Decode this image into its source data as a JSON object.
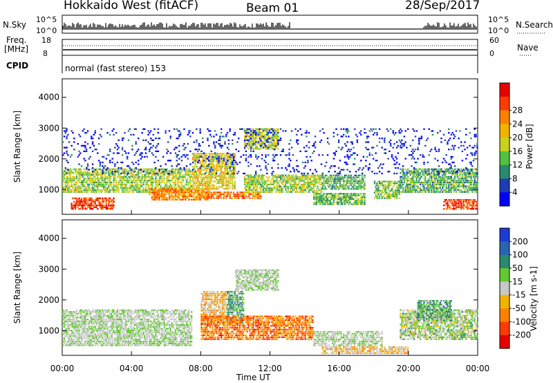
{
  "header": {
    "station": "Hokkaido West (fitACF)",
    "beam": "Beam 01",
    "date": "28/Sep/2017"
  },
  "status_panel": {
    "nsky_label": "N.Sky",
    "nsky_top": "10^5",
    "nsky_bottom": "10^0",
    "nsearch_label": "N.Search",
    "nsearch_top": "10^5",
    "nsearch_bottom": "10^0",
    "freq_label_1": "Freq.",
    "freq_label_2": "[MHz]",
    "freq_top": "18",
    "freq_bottom": "8",
    "nave_label": "Nave",
    "nave_top": "60",
    "nave_bottom": "0",
    "cpid_label": "CPID",
    "cpid_text": "normal (fast stereo) 153"
  },
  "chart_data": [
    {
      "type": "heatmap",
      "title": "",
      "xlabel": "Time UT",
      "ylabel": "Slant Range [km]",
      "colorbar_label": "Power [dB]",
      "x_ticks": [
        "00:00",
        "04:00",
        "08:00",
        "12:00",
        "16:00",
        "20:00",
        "00:00"
      ],
      "y_ticks": [
        1000,
        2000,
        3000,
        4000
      ],
      "ylim": [
        200,
        4600
      ],
      "colorbar_ticks": [
        4,
        8,
        12,
        16,
        20,
        24,
        28
      ],
      "colorbar_colors": [
        "#0000ff",
        "#1e3cb4",
        "#2a8a6e",
        "#55c040",
        "#c8d21e",
        "#f0b400",
        "#ff8200",
        "#ff3c00",
        "#e60000"
      ],
      "regions": [
        {
          "t0": 0.5,
          "t1": 3.0,
          "r0": 350,
          "r1": 750,
          "level": 0.85
        },
        {
          "t0": 0.0,
          "t1": 7.5,
          "r0": 900,
          "r1": 1700,
          "level": 0.45
        },
        {
          "t0": 5.0,
          "t1": 8.5,
          "r0": 650,
          "r1": 1050,
          "level": 0.7
        },
        {
          "t0": 7.5,
          "t1": 10.0,
          "r0": 1000,
          "r1": 2200,
          "level": 0.55
        },
        {
          "t0": 8.0,
          "t1": 11.5,
          "r0": 700,
          "r1": 950,
          "level": 0.75
        },
        {
          "t0": 10.5,
          "t1": 12.5,
          "r0": 2300,
          "r1": 3000,
          "level": 0.5
        },
        {
          "t0": 10.5,
          "t1": 15.0,
          "r0": 900,
          "r1": 1500,
          "level": 0.45
        },
        {
          "t0": 14.5,
          "t1": 17.5,
          "r0": 500,
          "r1": 900,
          "level": 0.4
        },
        {
          "t0": 15.0,
          "t1": 17.5,
          "r0": 1000,
          "r1": 1500,
          "level": 0.35
        },
        {
          "t0": 18.0,
          "t1": 19.5,
          "r0": 700,
          "r1": 1300,
          "level": 0.4
        },
        {
          "t0": 19.5,
          "t1": 24.0,
          "r0": 900,
          "r1": 1700,
          "level": 0.35
        },
        {
          "t0": 22.0,
          "t1": 24.0,
          "r0": 350,
          "r1": 700,
          "level": 0.85
        },
        {
          "t0": 0.0,
          "t1": 24.0,
          "r0": 1500,
          "r1": 3000,
          "level": 0.1
        }
      ]
    },
    {
      "type": "heatmap",
      "title": "",
      "xlabel": "Time UT",
      "ylabel": "Slant Range [km]",
      "colorbar_label": "Velocity [m s-1]",
      "x_ticks": [
        "00:00",
        "04:00",
        "08:00",
        "12:00",
        "16:00",
        "20:00",
        "00:00"
      ],
      "y_ticks": [
        1000,
        2000,
        3000,
        4000
      ],
      "ylim": [
        200,
        4600
      ],
      "colorbar_ticks": [
        200,
        100,
        50,
        15,
        -15,
        -50,
        -100,
        -200
      ],
      "colorbar_colors": [
        "#1e3cd2",
        "#2a64b4",
        "#2a8a6e",
        "#64c832",
        "#c8c8c8",
        "#f0b400",
        "#ff8200",
        "#ff3c00",
        "#e60000"
      ],
      "regions": [
        {
          "t0": 0.0,
          "t1": 7.5,
          "r0": 500,
          "r1": 1700,
          "level": 0.5
        },
        {
          "t0": 8.0,
          "t1": 9.5,
          "r0": 1200,
          "r1": 2300,
          "level": 0.6
        },
        {
          "t0": 9.5,
          "t1": 10.5,
          "r0": 1200,
          "r1": 2300,
          "level": 0.35
        },
        {
          "t0": 10.0,
          "t1": 12.5,
          "r0": 2300,
          "r1": 3000,
          "level": 0.5
        },
        {
          "t0": 8.0,
          "t1": 14.5,
          "r0": 700,
          "r1": 1500,
          "level": 0.75
        },
        {
          "t0": 14.5,
          "t1": 18.5,
          "r0": 500,
          "r1": 1000,
          "level": 0.5
        },
        {
          "t0": 15.0,
          "t1": 20.0,
          "r0": 250,
          "r1": 500,
          "level": 0.6
        },
        {
          "t0": 19.5,
          "t1": 24.0,
          "r0": 700,
          "r1": 1700,
          "level": 0.45
        },
        {
          "t0": 20.5,
          "t1": 22.5,
          "r0": 1300,
          "r1": 2000,
          "level": 0.35
        }
      ]
    }
  ]
}
